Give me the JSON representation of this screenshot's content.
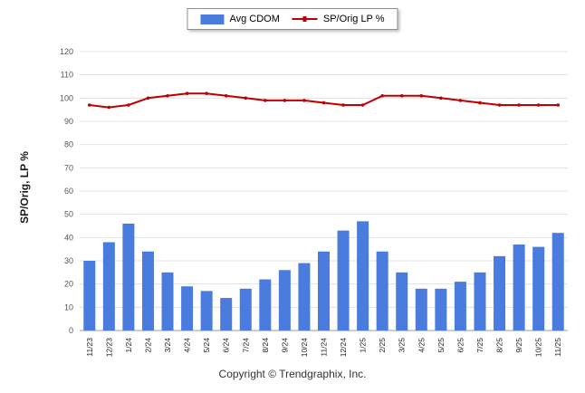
{
  "chart_data": {
    "type": "combo",
    "categories": [
      "11/23",
      "12/23",
      "1/24",
      "2/24",
      "3/24",
      "4/24",
      "5/24",
      "6/24",
      "7/24",
      "8/24",
      "9/24",
      "10/24",
      "11/24",
      "12/24",
      "1/25",
      "2/25",
      "3/25",
      "4/25",
      "5/25",
      "6/25",
      "7/25",
      "8/25",
      "9/25",
      "10/25",
      "11/25"
    ],
    "series": [
      {
        "name": "Avg CDOM",
        "type": "bar",
        "color": "#4a7ce0",
        "values": [
          30,
          38,
          46,
          34,
          25,
          19,
          17,
          14,
          18,
          22,
          26,
          29,
          34,
          43,
          47,
          34,
          25,
          18,
          18,
          21,
          25,
          32,
          37,
          36,
          42
        ]
      },
      {
        "name": "SP/Orig LP %",
        "type": "line",
        "color": "#c00000",
        "values": [
          97,
          96,
          97,
          100,
          101,
          102,
          102,
          101,
          100,
          99,
          99,
          99,
          98,
          97,
          97,
          101,
          101,
          101,
          100,
          99,
          98,
          97,
          97,
          97,
          97
        ]
      }
    ],
    "ylabel": "SP/Orig, LP %",
    "ylim": [
      0,
      120
    ],
    "ytick_step": 10,
    "grid": true,
    "legend_position": "top-center",
    "footer": "Copyright © Trendgraphix, Inc.",
    "colors": {
      "grid": "#e3e3e3",
      "axis": "#9a9a9a",
      "tick_text": "#555555",
      "xlabel_text": "#1f1f1f"
    }
  }
}
